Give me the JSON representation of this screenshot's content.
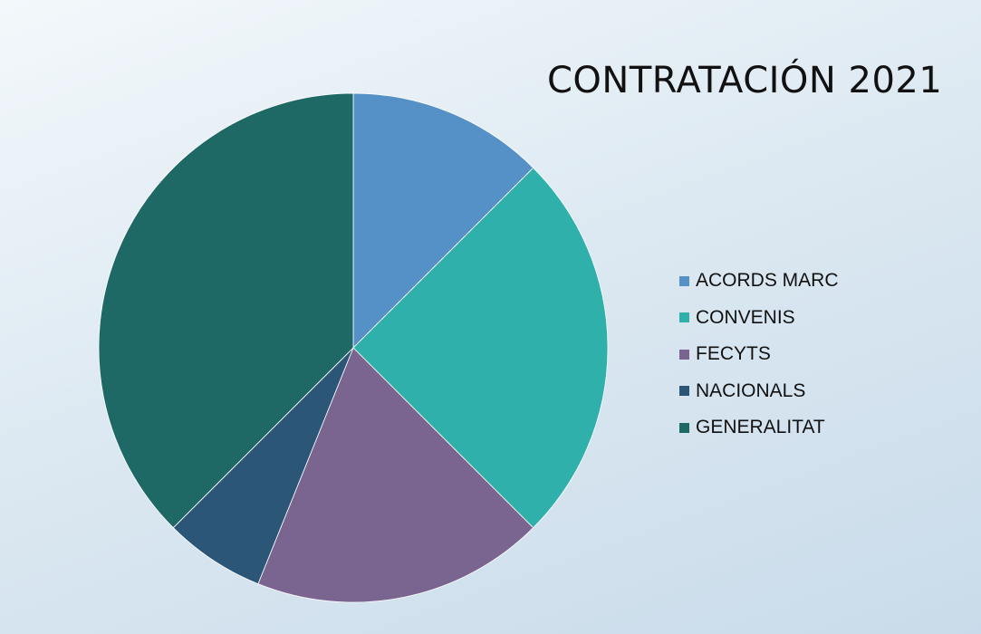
{
  "chart_data": {
    "type": "pie",
    "title": "CONTRATACIÓN 2021",
    "categories": [
      "ACORDS MARC",
      "CONVENIS",
      "FECYTS",
      "NACIONALS",
      "GENERALITAT"
    ],
    "values": [
      12.5,
      25,
      18.6,
      6.4,
      37.5
    ],
    "colors": [
      "#5590c6",
      "#2fb0ab",
      "#7a6591",
      "#2b5677",
      "#1e6865"
    ],
    "start_angle_deg": 0,
    "direction": "clockwise",
    "legend_position": "right"
  }
}
